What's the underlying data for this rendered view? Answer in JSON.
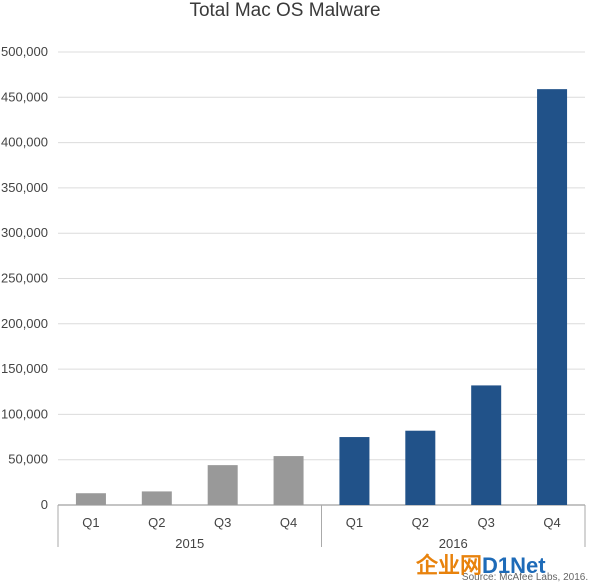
{
  "chart_data": {
    "type": "bar",
    "title": "Total Mac OS Malware",
    "categories": [
      "Q1",
      "Q2",
      "Q3",
      "Q4",
      "Q1",
      "Q2",
      "Q3",
      "Q4"
    ],
    "groups": [
      {
        "label": "2015",
        "categories": [
          "Q1",
          "Q2",
          "Q3",
          "Q4"
        ]
      },
      {
        "label": "2016",
        "categories": [
          "Q1",
          "Q2",
          "Q3",
          "Q4"
        ]
      }
    ],
    "values": [
      13000,
      15000,
      44000,
      54000,
      75000,
      82000,
      132000,
      459000
    ],
    "bar_colors": [
      "#999999",
      "#999999",
      "#999999",
      "#999999",
      "#215289",
      "#215289",
      "#215289",
      "#215289"
    ],
    "ylim": [
      0,
      500000
    ],
    "yticks": [
      "0",
      "50,000",
      "100,000",
      "150,000",
      "200,000",
      "250,000",
      "300,000",
      "350,000",
      "400,000",
      "450,000",
      "500,000"
    ],
    "grid": true,
    "source": "Source: McAfee Labs, 2016."
  },
  "watermark": {
    "text": "企业网D1Net",
    "colors": {
      "cn": "#e8820c",
      "net": "#1e6bb8"
    }
  }
}
